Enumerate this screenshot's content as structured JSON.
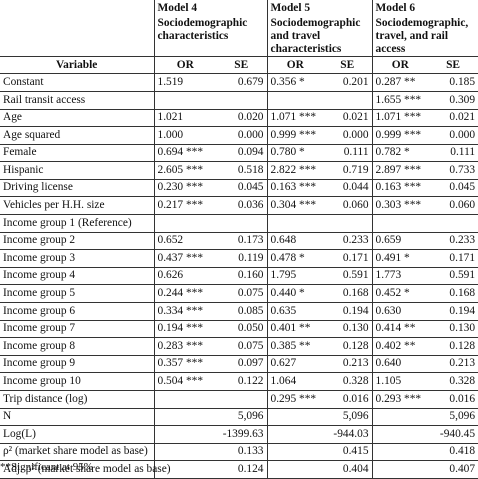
{
  "models": [
    {
      "title": "Model 4",
      "subtitle": "Sociodemographic characteristics"
    },
    {
      "title": "Model 5",
      "subtitle": "Sociodemographic and travel characteristics"
    },
    {
      "title": "Model 6",
      "subtitle": "Sociodemographic, travel, and rail access"
    }
  ],
  "column_headers": {
    "variable": "Variable",
    "or": "OR",
    "se": "SE"
  },
  "rows": [
    {
      "label": "Constant",
      "cells": [
        "1.519",
        "0.679",
        "0.356 *",
        "0.201",
        "0.287 **",
        "0.185"
      ]
    },
    {
      "label": "Rail transit access",
      "cells": [
        "",
        "",
        "",
        "",
        "1.655 ***",
        "0.309"
      ]
    },
    {
      "label": "Age",
      "cells": [
        "1.021",
        "0.020",
        "1.071 ***",
        "0.021",
        "1.071 ***",
        "0.021"
      ]
    },
    {
      "label": "Age squared",
      "cells": [
        "1.000",
        "0.000",
        "0.999 ***",
        "0.000",
        "0.999 ***",
        "0.000"
      ]
    },
    {
      "label": "Female",
      "cells": [
        "0.694 ***",
        "0.094",
        "0.780 *",
        "0.111",
        "0.782 *",
        "0.111"
      ]
    },
    {
      "label": "Hispanic",
      "cells": [
        "2.605 ***",
        "0.518",
        "2.822 ***",
        "0.719",
        "2.897 ***",
        "0.733"
      ]
    },
    {
      "label": "Driving license",
      "cells": [
        "0.230 ***",
        "0.045",
        "0.163 ***",
        "0.044",
        "0.163 ***",
        "0.045"
      ]
    },
    {
      "label": "Vehicles per H.H. size",
      "cells": [
        "0.217 ***",
        "0.036",
        "0.304 ***",
        "0.060",
        "0.303 ***",
        "0.060"
      ]
    },
    {
      "label": "Income group 1 (Reference)",
      "cells": [
        "",
        "",
        "",
        "",
        "",
        ""
      ]
    },
    {
      "label": "Income group 2",
      "cells": [
        "0.652",
        "0.173",
        "0.648",
        "0.233",
        "0.659",
        "0.233"
      ]
    },
    {
      "label": "Income group 3",
      "cells": [
        "0.437 ***",
        "0.119",
        "0.478 *",
        "0.171",
        "0.491 *",
        "0.171"
      ]
    },
    {
      "label": "Income group 4",
      "cells": [
        "0.626",
        "0.160",
        "1.795",
        "0.591",
        "1.773",
        "0.591"
      ]
    },
    {
      "label": "Income group 5",
      "cells": [
        "0.244 ***",
        "0.075",
        "0.440 *",
        "0.168",
        "0.452 *",
        "0.168"
      ]
    },
    {
      "label": "Income group 6",
      "cells": [
        "0.334 ***",
        "0.085",
        "0.635",
        "0.194",
        "0.630",
        "0.194"
      ]
    },
    {
      "label": "Income group 7",
      "cells": [
        "0.194 ***",
        "0.050",
        "0.401 **",
        "0.130",
        "0.414 **",
        "0.130"
      ]
    },
    {
      "label": "Income group 8",
      "cells": [
        "0.283 ***",
        "0.075",
        "0.385 **",
        "0.128",
        "0.402 **",
        "0.128"
      ]
    },
    {
      "label": "Income group 9",
      "cells": [
        "0.357 ***",
        "0.097",
        "0.627",
        "0.213",
        "0.640",
        "0.213"
      ]
    },
    {
      "label": "Income group 10",
      "cells": [
        "0.504 ***",
        "0.122",
        "1.064",
        "0.328",
        "1.105",
        "0.328"
      ]
    },
    {
      "label": "Trip distance (log)",
      "cells": [
        "",
        "",
        "0.295 ***",
        "0.016",
        "0.293 ***",
        "0.016"
      ]
    },
    {
      "label": "N",
      "cells": [
        "",
        "5,096",
        "",
        "5,096",
        "",
        "5,096"
      ]
    },
    {
      "label": "Log(L)",
      "cells": [
        "",
        "-1399.63",
        "",
        "-944.03",
        "",
        "-940.45"
      ]
    },
    {
      "label": "ρ² (market share model as base)",
      "cells": [
        "",
        "0.133",
        "",
        "0.415",
        "",
        "0.418"
      ]
    },
    {
      "label": "Adj. ρ² (market share model as base)",
      "cells": [
        "",
        "0.124",
        "",
        "0.404",
        "",
        "0.407"
      ]
    }
  ],
  "footnote": "**Significant at 95%"
}
